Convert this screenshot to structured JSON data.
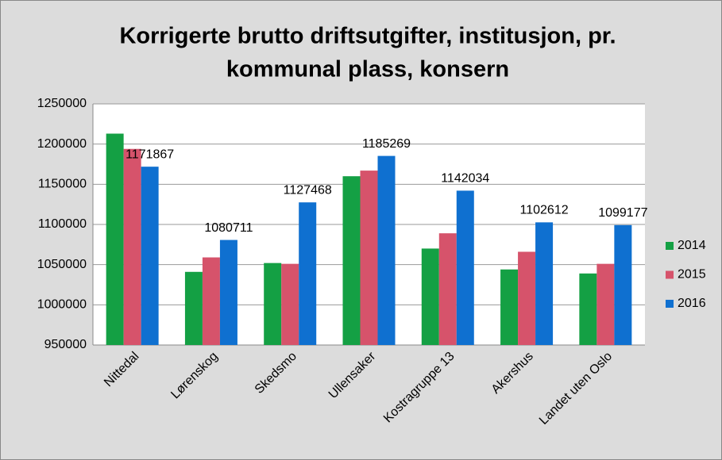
{
  "chart_data": {
    "type": "bar",
    "title": [
      "Korrigerte brutto driftsutgifter, institusjon, pr.",
      "kommunal plass, konsern"
    ],
    "categories": [
      "Nittedal",
      "Lørenskog",
      "Skedsmo",
      "Ullensaker",
      "Kostragruppe 13",
      "Akershus",
      "Landet uten Oslo"
    ],
    "series": [
      {
        "name": "2014",
        "color": "#14a044",
        "values": [
          1213000,
          1041000,
          1052000,
          1160000,
          1070000,
          1044000,
          1039000
        ]
      },
      {
        "name": "2015",
        "color": "#d6536b",
        "values": [
          1194000,
          1059000,
          1051000,
          1167000,
          1089000,
          1066000,
          1051000
        ]
      },
      {
        "name": "2016",
        "color": "#0f70d0",
        "values": [
          1171867,
          1080711,
          1127468,
          1185269,
          1142034,
          1102612,
          1099177
        ],
        "data_labels": true
      }
    ],
    "ylim": [
      950000,
      1250000
    ],
    "yticks": [
      950000,
      1000000,
      1050000,
      1100000,
      1150000,
      1200000,
      1250000
    ],
    "grid": true,
    "legend": "right"
  }
}
